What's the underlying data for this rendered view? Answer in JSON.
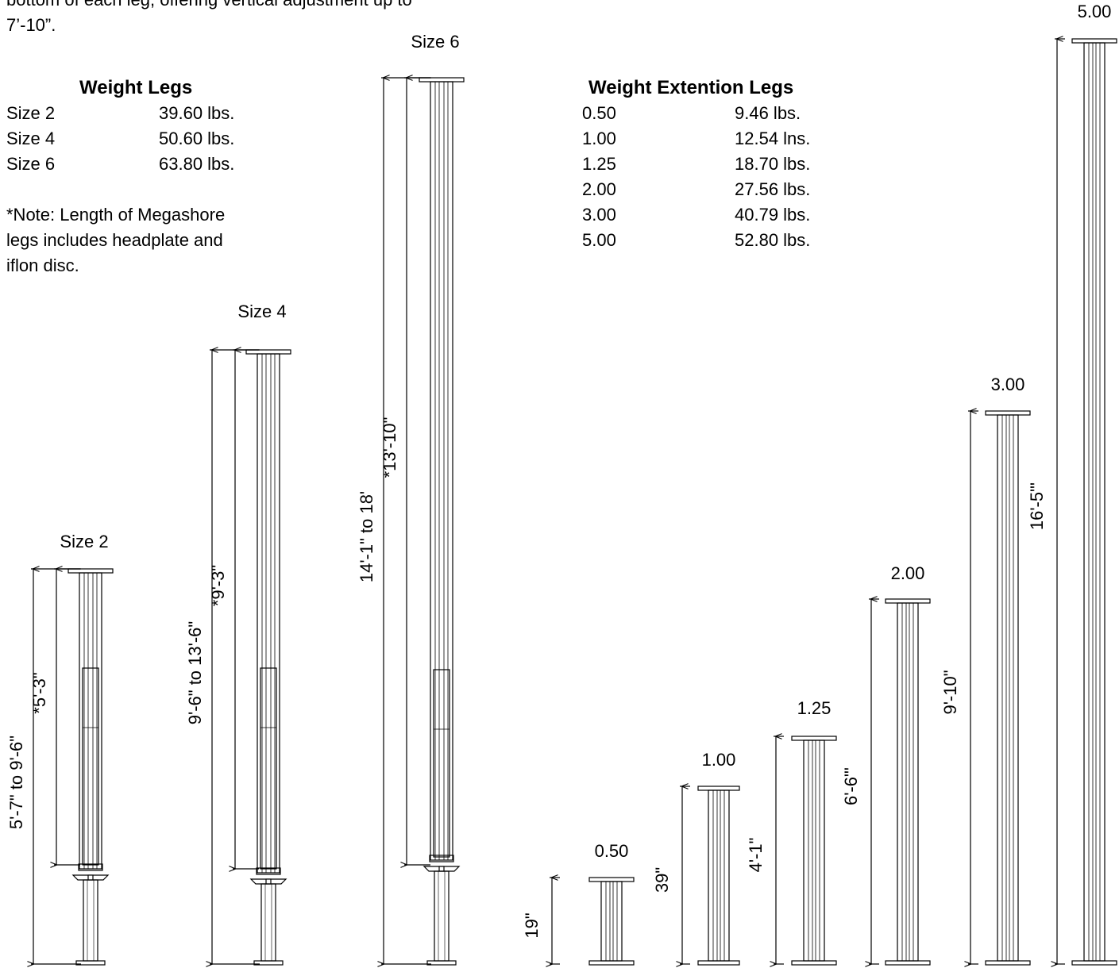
{
  "intro": {
    "line1": "bottom of each leg, offering vertical adjustment up to",
    "line2": "7’-10”."
  },
  "weight_legs": {
    "title": "Weight Legs",
    "rows": [
      {
        "size": "Size 2",
        "weight": "39.60 lbs."
      },
      {
        "size": "Size 4",
        "weight": "50.60 lbs."
      },
      {
        "size": "Size 6",
        "weight": "63.80 lbs."
      }
    ]
  },
  "note": {
    "lines": [
      "*Note: Length of Megashore",
      "legs includes headplate and",
      "iflon disc."
    ]
  },
  "weight_extension_legs": {
    "title": "Weight Extention Legs",
    "rows": [
      {
        "size": "0.50",
        "weight": "9.46 lbs."
      },
      {
        "size": "1.00",
        "weight": "12.54 lns."
      },
      {
        "size": "1.25",
        "weight": "18.70 lbs."
      },
      {
        "size": "2.00",
        "weight": "27.56 lbs."
      },
      {
        "size": "3.00",
        "weight": "40.79 lbs."
      },
      {
        "size": "5.00",
        "weight": "52.80 lbs."
      }
    ]
  },
  "legs": [
    {
      "id": "size-2",
      "label": "Size 2",
      "adjustable_range": "5'-7\" to 9'-6\"",
      "body_length": "*5'-3\""
    },
    {
      "id": "size-4",
      "label": "Size 4",
      "adjustable_range": "9'-6\" to 13'-6\"",
      "body_length": "*9'-3\""
    },
    {
      "id": "size-6",
      "label": "Size 6",
      "adjustable_range": "14'-1\" to 18'",
      "body_length": "*13'-10\""
    }
  ],
  "extensions": [
    {
      "id": "ext-050",
      "label": "0.50",
      "length": "19\""
    },
    {
      "id": "ext-100",
      "label": "1.00",
      "length": "39\""
    },
    {
      "id": "ext-125",
      "label": "1.25",
      "length": "4'-1\""
    },
    {
      "id": "ext-200",
      "label": "2.00",
      "length": "6'-6\"'"
    },
    {
      "id": "ext-300",
      "label": "3.00",
      "length": "9'-10\""
    },
    {
      "id": "ext-500",
      "label": "5.00",
      "length": "16'-5\"'"
    }
  ]
}
